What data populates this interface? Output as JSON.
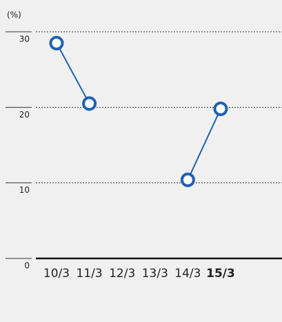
{
  "chart_data": {
    "type": "line",
    "y_label": "(%)",
    "categories": [
      "10/3",
      "11/3",
      "12/3",
      "13/3",
      "14/3",
      "15/3"
    ],
    "series": [
      {
        "name": null,
        "color": "#1f62b0",
        "values": [
          28.5,
          20.5,
          null,
          null,
          10.4,
          19.8
        ]
      }
    ],
    "ylim": [
      0,
      30
    ],
    "yticks": [
      0,
      10,
      20,
      30
    ],
    "grid": true,
    "highlight_index": 5
  }
}
